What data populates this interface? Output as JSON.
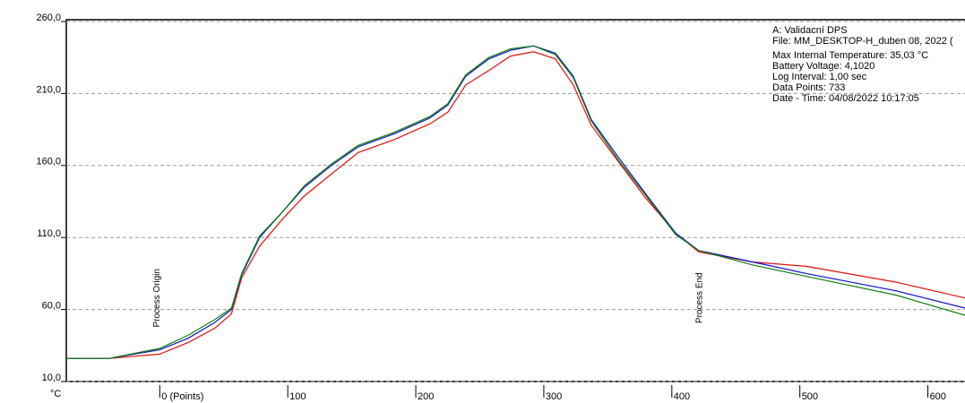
{
  "chart_data": {
    "type": "line",
    "y_label": "°C",
    "xlim": [
      -73,
      629
    ],
    "ylim": [
      10,
      260
    ],
    "yticks": [
      {
        "value": 10,
        "label": "10,0"
      },
      {
        "value": 60,
        "label": "60,0"
      },
      {
        "value": 110,
        "label": "110,0"
      },
      {
        "value": 160,
        "label": "160,0"
      },
      {
        "value": 210,
        "label": "210,0"
      },
      {
        "value": 260,
        "label": "260,0"
      }
    ],
    "xticks": [
      {
        "value": 0,
        "label": "0 (Points)"
      },
      100,
      200,
      300,
      400,
      500,
      600
    ],
    "grid": true,
    "x": [
      -73,
      -40,
      0,
      22,
      43,
      56,
      64,
      78,
      96,
      113,
      134,
      155,
      183,
      211,
      225,
      239,
      257,
      274,
      292,
      309,
      323,
      337,
      358,
      379,
      403,
      421,
      463,
      505,
      575,
      629
    ],
    "series": [
      {
        "color": "#e01010",
        "values": [
          26,
          26,
          29,
          37,
          47,
          57,
          82,
          104,
          123,
          139,
          154,
          169,
          178,
          189,
          197,
          216,
          226,
          236,
          239,
          234,
          216,
          188,
          163,
          138,
          113,
          100,
          93,
          90,
          79,
          68
        ]
      },
      {
        "color": "#1010d0",
        "values": [
          26,
          26,
          32,
          40,
          51,
          60,
          84,
          110,
          128,
          145,
          160,
          173,
          182,
          193,
          202,
          222,
          234,
          240,
          243,
          238,
          222,
          192,
          166,
          141,
          113,
          101,
          93,
          85,
          73,
          61
        ]
      },
      {
        "color": "#108010",
        "values": [
          26,
          26,
          33,
          42,
          53,
          61,
          85,
          111,
          128,
          146,
          161,
          174,
          183,
          194,
          203,
          223,
          235,
          241,
          243,
          237,
          221,
          191,
          164,
          140,
          112,
          101,
          91,
          83,
          70,
          56
        ]
      }
    ],
    "annotations": [
      {
        "text": "Process Origin",
        "x": 0
      },
      {
        "text": "Process End",
        "x": 424
      }
    ],
    "info": [
      "A: Validacní DPS",
      "File: MM_DESKTOP-H_duben 08, 2022 (",
      "Max Internal Temperature:  35,03 °C",
      "Battery Voltage: 4,1020",
      "Log Interval: 1,00 sec",
      "Data Points: 733",
      "Date - Time: 04/08/2022 10:17:05"
    ]
  }
}
